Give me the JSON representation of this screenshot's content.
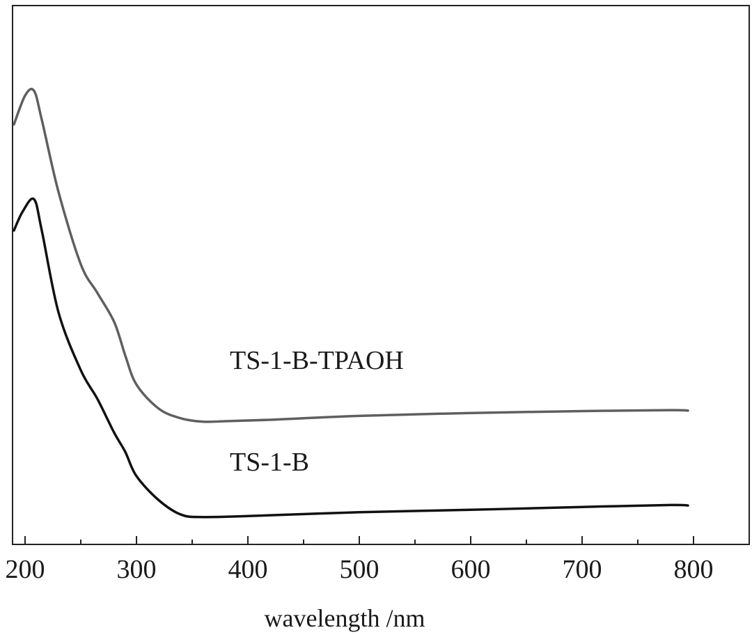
{
  "chart_data": {
    "type": "line",
    "title": "",
    "xlabel": "wavelength /nm",
    "ylabel": "",
    "xlim": [
      190,
      1080
    ],
    "ylim": [
      0,
      1
    ],
    "xticks": [
      200,
      300,
      400,
      500,
      600,
      700,
      800
    ],
    "minor_xticks": [
      250,
      350,
      450,
      550,
      650,
      750
    ],
    "y_ticks_shown": false,
    "grid": false,
    "series": [
      {
        "name": "TS-1-B-TPAOH",
        "color": "#5f5f5f",
        "x": [
          190,
          200,
          208,
          215,
          230,
          250,
          265,
          280,
          290,
          300,
          320,
          340,
          360,
          380,
          420,
          500,
          600,
          700,
          780,
          795
        ],
        "y": [
          0.84,
          0.9,
          0.91,
          0.85,
          0.7,
          0.55,
          0.49,
          0.43,
          0.36,
          0.3,
          0.25,
          0.23,
          0.223,
          0.224,
          0.227,
          0.235,
          0.241,
          0.245,
          0.247,
          0.246
        ]
      },
      {
        "name": "TS-1-B",
        "color": "#111111",
        "x": [
          190,
          198,
          208,
          215,
          230,
          250,
          265,
          280,
          290,
          300,
          320,
          340,
          360,
          400,
          500,
          600,
          700,
          780,
          795
        ],
        "y": [
          0.62,
          0.66,
          0.685,
          0.62,
          0.45,
          0.33,
          0.27,
          0.2,
          0.16,
          0.11,
          0.06,
          0.03,
          0.025,
          0.027,
          0.035,
          0.04,
          0.046,
          0.05,
          0.049
        ]
      }
    ]
  }
}
